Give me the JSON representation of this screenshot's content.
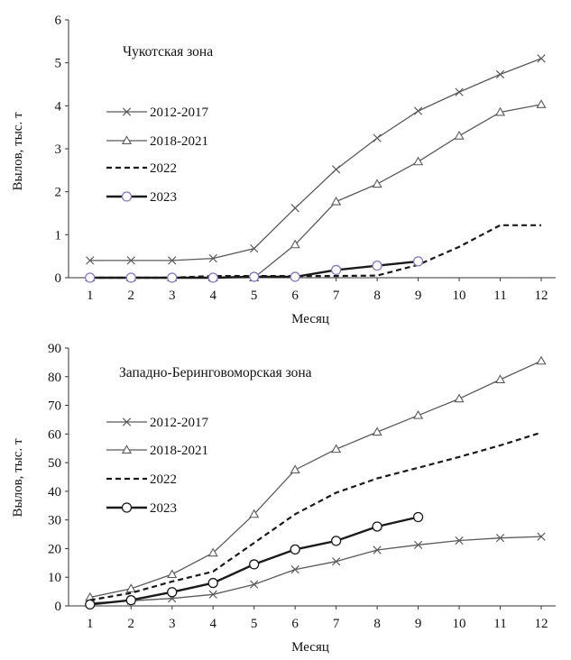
{
  "chart_data": [
    {
      "type": "line",
      "title": "Чукотская  зона",
      "xlabel": "Месяц",
      "ylabel": "Вылов, тыс. т",
      "x": [
        1,
        2,
        3,
        4,
        5,
        6,
        7,
        8,
        9,
        10,
        11,
        12
      ],
      "xlim": [
        1,
        12
      ],
      "ylim": [
        0,
        6
      ],
      "yticks": [
        0,
        1,
        2,
        3,
        4,
        5,
        6
      ],
      "grid": false,
      "legend_position": "left",
      "series": [
        {
          "name": "2012-2017",
          "marker": "x",
          "line": "solid",
          "color": "#5a5a5a",
          "x": [
            1,
            2,
            3,
            4,
            5,
            6,
            7,
            8,
            9,
            10,
            11,
            12
          ],
          "values": [
            0.4,
            0.4,
            0.4,
            0.45,
            0.68,
            1.62,
            2.52,
            3.25,
            3.88,
            4.32,
            4.73,
            5.1
          ]
        },
        {
          "name": "2018-2021",
          "marker": "triangle",
          "line": "solid",
          "color": "#5a5a5a",
          "x": [
            1,
            2,
            3,
            4,
            5,
            6,
            7,
            8,
            9,
            10,
            11,
            12
          ],
          "values": [
            0,
            0,
            0,
            0,
            0,
            0.77,
            1.77,
            2.18,
            2.7,
            3.3,
            3.85,
            4.03
          ]
        },
        {
          "name": "2022",
          "marker": "none",
          "line": "dashed",
          "color": "#1a1a1a",
          "x": [
            1,
            2,
            3,
            4,
            5,
            6,
            7,
            8,
            9,
            10,
            11,
            12
          ],
          "values": [
            0,
            0,
            0,
            0.04,
            0.04,
            0.04,
            0.04,
            0.05,
            0.3,
            0.72,
            1.22,
            1.22
          ]
        },
        {
          "name": "2023",
          "marker": "circle",
          "line": "solid-bold",
          "color": "#1a1a1a",
          "marker_color": "#8a78b8",
          "x": [
            1,
            2,
            3,
            4,
            5,
            6,
            7,
            8,
            9
          ],
          "values": [
            0,
            0,
            0,
            0,
            0.02,
            0.02,
            0.18,
            0.28,
            0.38
          ]
        }
      ]
    },
    {
      "type": "line",
      "title": "Западно-Беринговоморская  зона",
      "xlabel": "Месяц",
      "ylabel": "Вылов, тыс. т",
      "x": [
        1,
        2,
        3,
        4,
        5,
        6,
        7,
        8,
        9,
        10,
        11,
        12
      ],
      "xlim": [
        1,
        12
      ],
      "ylim": [
        0,
        90
      ],
      "yticks": [
        0,
        10,
        20,
        30,
        40,
        50,
        60,
        70,
        80,
        90
      ],
      "grid": false,
      "legend_position": "left",
      "series": [
        {
          "name": "2012-2017",
          "marker": "x",
          "line": "solid",
          "color": "#5a5a5a",
          "x": [
            1,
            2,
            3,
            4,
            5,
            6,
            7,
            8,
            9,
            10,
            11,
            12
          ],
          "values": [
            1.0,
            1.8,
            2.6,
            4.0,
            7.5,
            12.7,
            15.5,
            19.5,
            21.3,
            22.8,
            23.7,
            24.2
          ]
        },
        {
          "name": "2018-2021",
          "marker": "triangle",
          "line": "solid",
          "color": "#5a5a5a",
          "x": [
            1,
            2,
            3,
            4,
            5,
            6,
            7,
            8,
            9,
            10,
            11,
            12
          ],
          "values": [
            3.0,
            6.0,
            11.0,
            18.5,
            32.0,
            47.5,
            54.7,
            60.7,
            66.5,
            72.3,
            79.0,
            85.5
          ]
        },
        {
          "name": "2022",
          "marker": "none",
          "line": "dashed",
          "color": "#1a1a1a",
          "x": [
            1,
            2,
            3,
            4,
            5,
            6,
            7,
            8,
            9,
            10,
            11,
            12
          ],
          "values": [
            2.0,
            4.5,
            8.5,
            12.0,
            22.0,
            32.0,
            39.5,
            44.5,
            48.2,
            52.0,
            56.0,
            60.5
          ]
        },
        {
          "name": "2023",
          "marker": "circle",
          "line": "solid-bold",
          "color": "#1a1a1a",
          "marker_color": "#1a1a1a",
          "x": [
            1,
            2,
            3,
            4,
            5,
            6,
            7,
            8,
            9
          ],
          "values": [
            0.5,
            2.0,
            4.8,
            8.0,
            14.5,
            19.7,
            22.7,
            27.7,
            31.0
          ]
        }
      ]
    }
  ]
}
